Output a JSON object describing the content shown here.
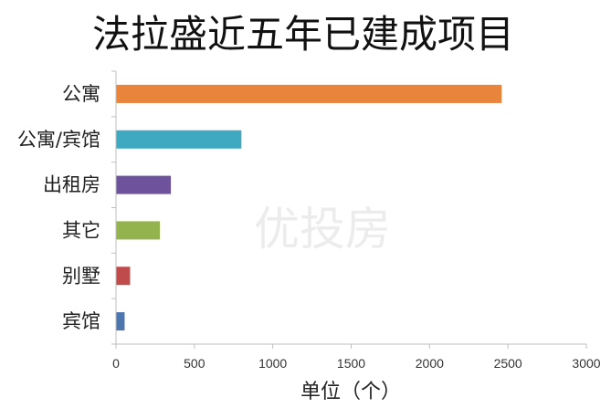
{
  "chart_data": {
    "type": "bar",
    "orientation": "horizontal",
    "title": "法拉盛近五年已建成项目",
    "xlabel": "单位（个）",
    "ylabel": "",
    "categories": [
      "公寓",
      "公寓/宾馆",
      "出租房",
      "其它",
      "别墅",
      "宾馆"
    ],
    "values": [
      2460,
      800,
      350,
      280,
      90,
      55
    ],
    "colors": [
      "#E8843C",
      "#3FA9C2",
      "#6E529B",
      "#93B34F",
      "#BF4C4A",
      "#4E76AE"
    ],
    "xlim": [
      0,
      3000
    ],
    "xticks": [
      "0",
      "500",
      "1000",
      "1500",
      "2000",
      "2500",
      "3000"
    ],
    "grid": false,
    "legend": "none"
  },
  "watermark": "优投房"
}
